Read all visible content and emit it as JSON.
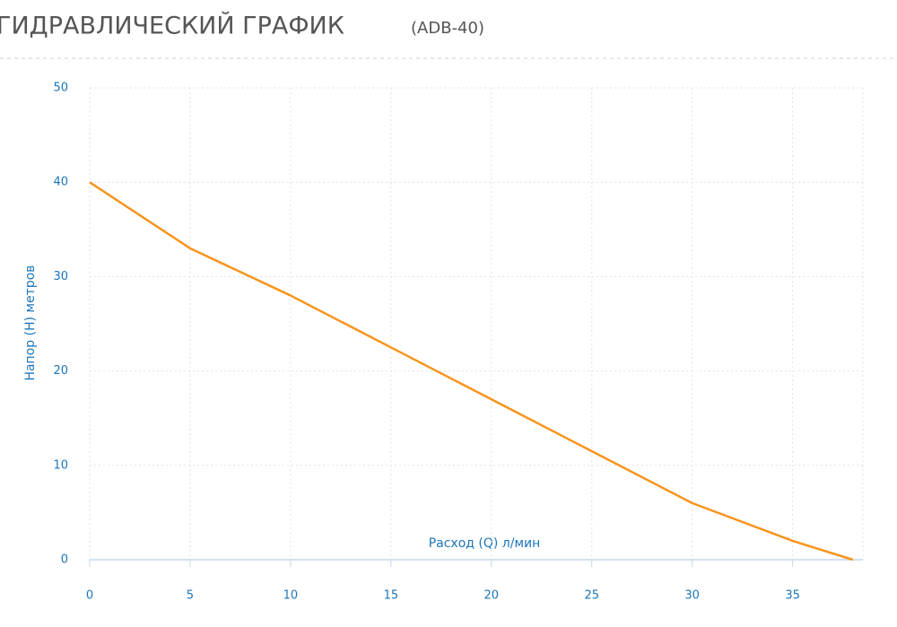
{
  "chart_data": {
    "type": "line",
    "title": "ГИДРАВЛИЧЕСКИЙ ГРАФИК",
    "subtitle": "(ADB-40)",
    "x_label": "Расход (Q) л/мин",
    "y_label": "Напор (H) метров",
    "x": [
      0,
      5,
      10,
      15,
      20,
      25,
      30,
      35,
      38
    ],
    "series": [
      {
        "name": "ADB-40",
        "color": "#f7941d",
        "values": [
          40,
          33,
          28,
          22.5,
          17,
          11.5,
          6,
          2,
          0
        ]
      }
    ],
    "xlim": [
      0,
      38.5
    ],
    "xticks": [
      0,
      5,
      10,
      15,
      20,
      25,
      30,
      35
    ],
    "ylim": [
      0,
      50
    ],
    "yticks": [
      0,
      10,
      20,
      30,
      40,
      50
    ],
    "grid": true
  }
}
